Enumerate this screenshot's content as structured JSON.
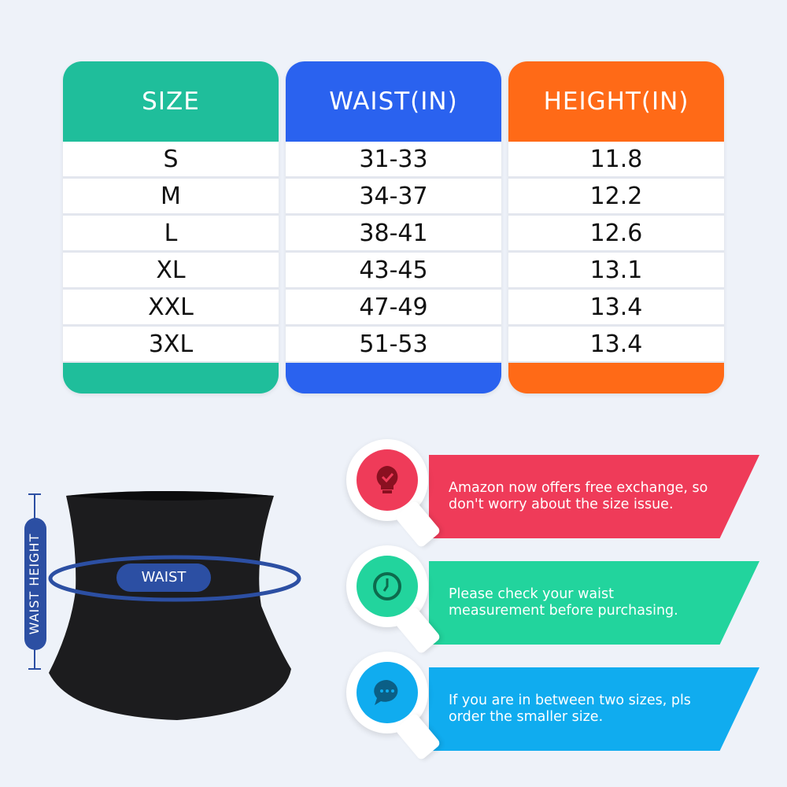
{
  "colors": {
    "size": "#1fbe9b",
    "waist": "#2a62ef",
    "height": "#ff6a17",
    "red": "#ef3b59",
    "green": "#22d49d",
    "blue": "#10acef",
    "navy": "#2c4fa3"
  },
  "table": {
    "headers": [
      "SIZE",
      "WAIST(IN)",
      "HEIGHT(IN)"
    ],
    "rows": [
      [
        "S",
        "31-33",
        "11.8"
      ],
      [
        "M",
        "34-37",
        "12.2"
      ],
      [
        "L",
        "38-41",
        "12.6"
      ],
      [
        "XL",
        "43-45",
        "13.1"
      ],
      [
        "XXL",
        "47-49",
        "13.4"
      ],
      [
        "3XL",
        "51-53",
        "13.4"
      ]
    ]
  },
  "diagram": {
    "waist_label": "WAIST",
    "height_label": "WAIST HEIGHT"
  },
  "tips": [
    {
      "icon": "lightbulb-check-icon",
      "text": "Amazon now offers free exchange, so don't worry about the size issue."
    },
    {
      "icon": "clock-icon",
      "text": "Please check your waist measurement before purchasing."
    },
    {
      "icon": "chat-bubble-icon",
      "text": "If you are in between two sizes, pls order the smaller size."
    }
  ]
}
